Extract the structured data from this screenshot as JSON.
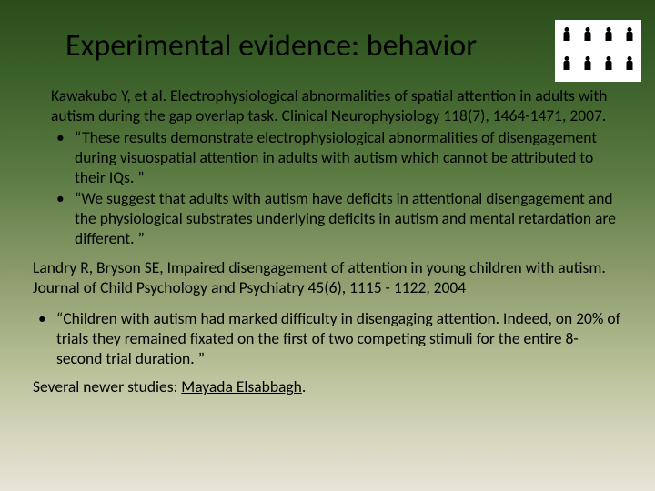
{
  "title": "Experimental evidence: behavior",
  "citation1": "Kawakubo Y, et al. Electrophysiological abnormalities of spatial attention in adults with autism during the gap overlap task. Clinical Neurophysiology 118(7), 1464-1471, 2007.",
  "bullet1a": "“These results demonstrate electrophysiological abnormalities of disengagement during visuospatial attention in adults with autism which cannot be attributed to their IQs. ”",
  "bullet1b": "“We suggest that adults with autism have deficits in attentional disengagement and the physiological substrates underlying deficits in autism and mental retardation are different. ”",
  "citation2": "Landry R, Bryson SE, Impaired disengagement of attention in young children with autism. Journal of Child Psychology and Psychiatry 45(6), 1115 - 1122, 2004",
  "bullet2": "“Children with autism had marked difficulty in disengaging attention. Indeed, on 20% of trials they remained fixated on the first of two competing stimuli for the entire 8-second trial duration. ”",
  "footer_prefix": "Several newer studies:  ",
  "footer_link": "Mayada Elsabbagh",
  "footer_suffix": "."
}
